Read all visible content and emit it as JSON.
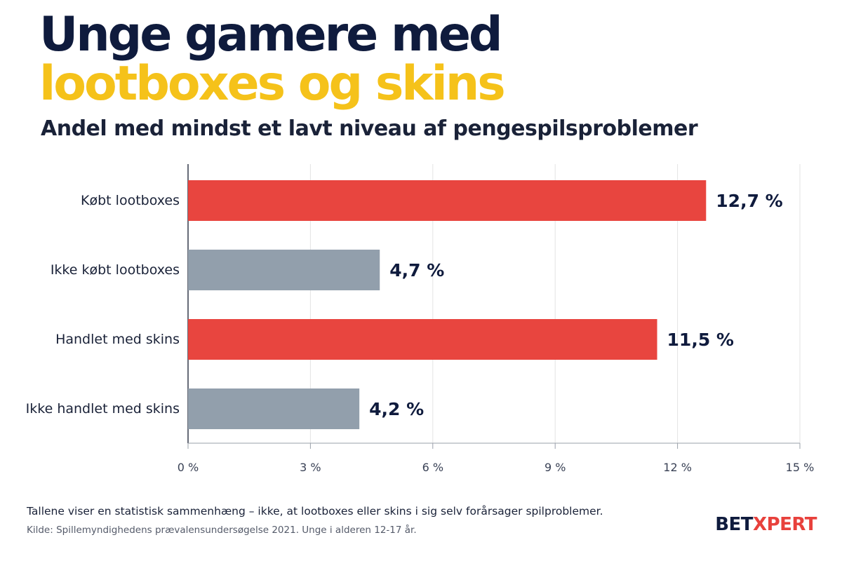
{
  "header": {
    "title_line1": "Unge gamere med",
    "title_line2": "lootboxes og skins",
    "subtitle": "Andel med mindst et lavt niveau af pengespilsproblemer"
  },
  "footer": {
    "note": "Tallene viser en statistisk sammenhæng – ikke, at lootboxes eller skins i sig selv forårsager spilproblemer.",
    "source": "Kilde: Spillemyndighedens prævalensundersøgelse 2021. Unge i alderen 12-17 år.",
    "logo_part1": "BET",
    "logo_part2": "XPERT"
  },
  "colors": {
    "highlight": "#e8453f",
    "neutral": "#929fac",
    "text_dark": "#0f1b3d",
    "title_accent": "#f5c21a",
    "grid": "#e3e3e3"
  },
  "chart_data": {
    "type": "bar",
    "orientation": "horizontal",
    "title": "Unge gamere med lootboxes og skins",
    "subtitle": "Andel med mindst et lavt niveau af pengespilsproblemer",
    "categories": [
      "Købt lootboxes",
      "Ikke købt lootboxes",
      "Handlet med skins",
      "Ikke handlet med skins"
    ],
    "values": [
      12.7,
      4.7,
      11.5,
      4.2
    ],
    "value_labels": [
      "12,7 %",
      "4,7 %",
      "11,5 %",
      "4,2 %"
    ],
    "bar_colors": [
      "#e8453f",
      "#929fac",
      "#e8453f",
      "#929fac"
    ],
    "xlim": [
      0,
      15
    ],
    "xticks": [
      0,
      3,
      6,
      9,
      12,
      15
    ],
    "xtick_labels": [
      "0 %",
      "3 %",
      "6 %",
      "9 %",
      "12 %",
      "15 %"
    ],
    "grid": true,
    "legend": "none"
  }
}
